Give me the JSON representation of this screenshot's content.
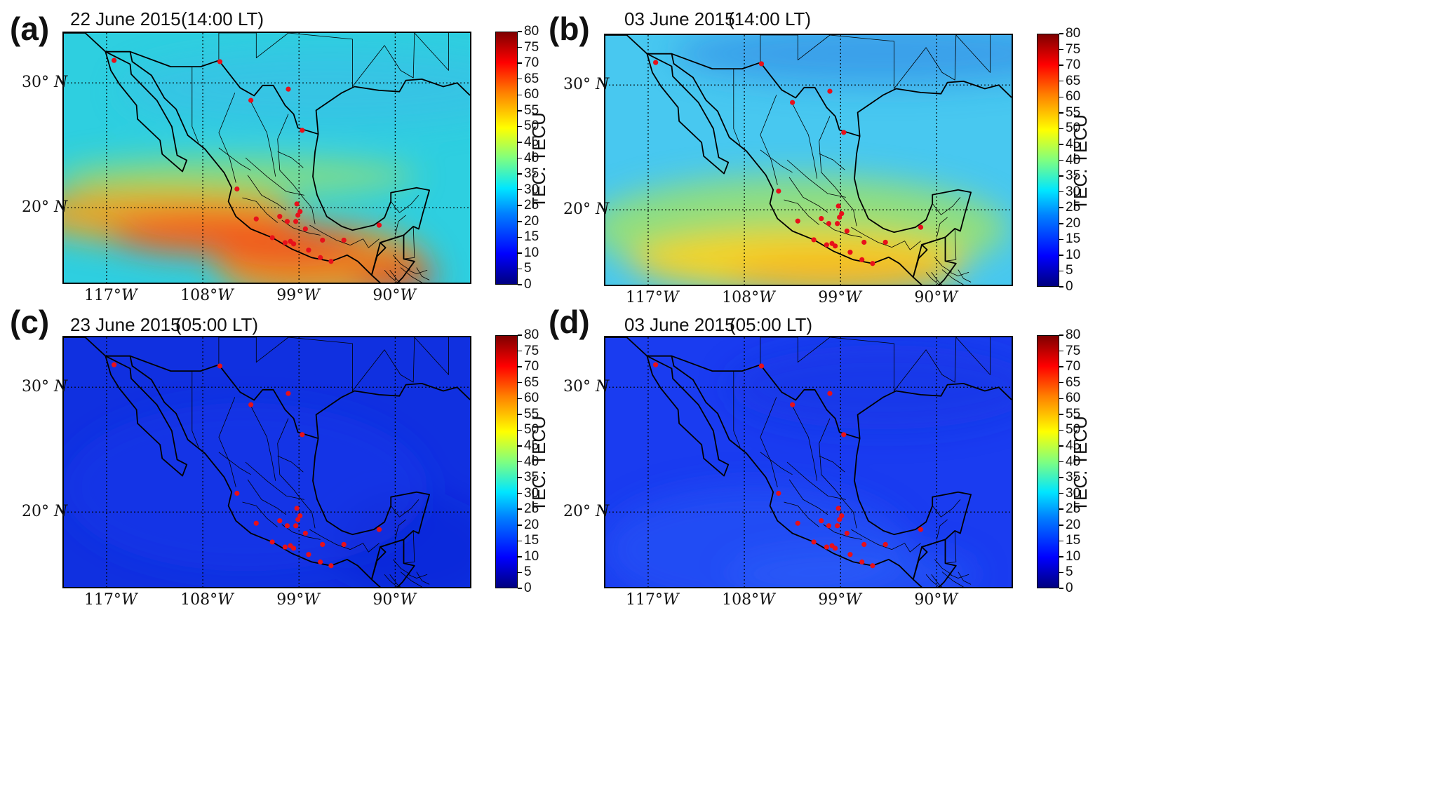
{
  "figure": {
    "panels": [
      {
        "id": "a",
        "letter": "(a)",
        "date": "22 June 2015",
        "time": "(14:00 LT)",
        "condition": "day_storm"
      },
      {
        "id": "b",
        "letter": "(b)",
        "date": "03 June 2015",
        "time": "(14:00 LT)",
        "condition": "day_quiet"
      },
      {
        "id": "c",
        "letter": "(c)",
        "date": "23 June 2015",
        "time": "(05:00 LT)",
        "condition": "night_storm"
      },
      {
        "id": "d",
        "letter": "(d)",
        "date": "03 June 2015",
        "time": "(05:00 LT)",
        "condition": "night_quiet"
      }
    ],
    "lat_labels": [
      {
        "deg": "30°",
        "hemi": "N"
      },
      {
        "deg": "20°",
        "hemi": "N"
      }
    ],
    "lon_labels": [
      {
        "deg": "117°",
        "hemi": "W"
      },
      {
        "deg": "108°",
        "hemi": "W"
      },
      {
        "deg": "99°",
        "hemi": "W"
      },
      {
        "deg": "90°",
        "hemi": "W"
      }
    ],
    "colorbar": {
      "label": "TEC. TECU",
      "min": 0,
      "max": 80,
      "ticks": [
        "0",
        "5",
        "10",
        "15",
        "20",
        "25",
        "30",
        "35",
        "40",
        "45",
        "50",
        "55",
        "60",
        "65",
        "70",
        "75",
        "80"
      ]
    },
    "colors": {
      "station_marker": "#e8101a",
      "day_storm_background": "#2ecfe0",
      "day_storm_band": "#f2601a",
      "day_quiet_background": "#48c8f0",
      "day_quiet_band": "#ffd21e",
      "night_storm_background": "#1030e0",
      "night_quiet_background": "#1a3cf0"
    },
    "stations_deg": [
      [
        -116.3,
        31.8
      ],
      [
        -106.4,
        31.7
      ],
      [
        -103.5,
        28.6
      ],
      [
        -100.0,
        29.5
      ],
      [
        -98.7,
        26.2
      ],
      [
        -104.8,
        21.5
      ],
      [
        -103.0,
        19.1
      ],
      [
        -100.8,
        19.3
      ],
      [
        -100.1,
        18.9
      ],
      [
        -99.2,
        20.3
      ],
      [
        -99.1,
        19.4
      ],
      [
        -98.9,
        19.7
      ],
      [
        -99.3,
        18.9
      ],
      [
        -98.4,
        18.3
      ],
      [
        -99.8,
        17.3
      ],
      [
        -101.5,
        17.6
      ],
      [
        -100.3,
        17.2
      ],
      [
        -99.5,
        17.1
      ],
      [
        -98.1,
        16.6
      ],
      [
        -96.8,
        17.4
      ],
      [
        -97.0,
        16.0
      ],
      [
        -96.0,
        15.7
      ],
      [
        -94.8,
        17.4
      ],
      [
        -91.5,
        18.6
      ]
    ],
    "map_extent_deg": {
      "lon_min": -121,
      "lon_max": -83,
      "lat_min": 14,
      "lat_max": 34
    }
  }
}
